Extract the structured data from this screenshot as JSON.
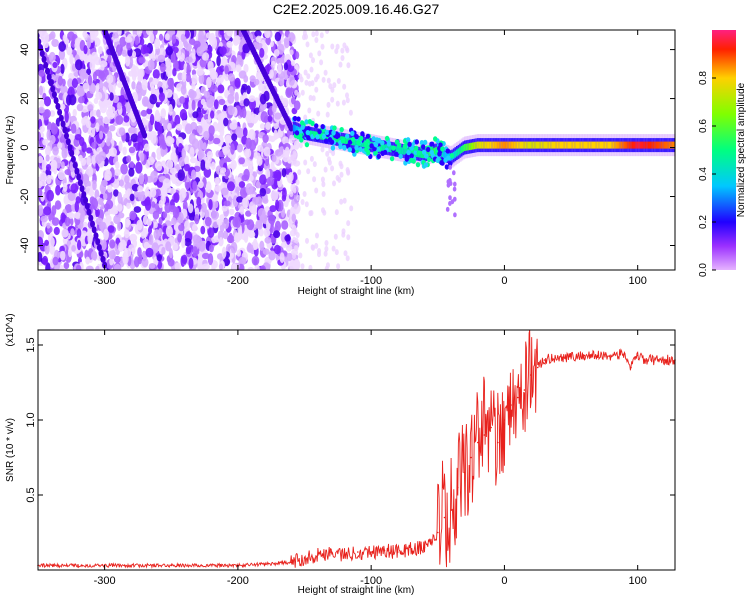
{
  "title": "C2E2.2025.009.16.46.G27",
  "chart_data": [
    {
      "type": "heatmap",
      "xlabel": "Height of straight line (km)",
      "ylabel": "Frequency (Hz)",
      "xlim": [
        -350,
        128
      ],
      "ylim": [
        -50,
        48
      ],
      "x_ticks": [
        -300,
        -200,
        -100,
        0,
        100
      ],
      "y_ticks": [
        -40,
        -20,
        0,
        20,
        40
      ],
      "colorbar": {
        "label": "Normalized spectral amplitude",
        "range": [
          0.0,
          1.0
        ],
        "ticks": [
          0.0,
          0.2,
          0.4,
          0.6,
          0.8
        ]
      },
      "noise_region_x": [
        -350,
        -160
      ],
      "signal_trace": {
        "x": [
          -158,
          -150,
          -140,
          -130,
          -120,
          -110,
          -100,
          -90,
          -80,
          -70,
          -60,
          -50,
          -45,
          -40,
          -30,
          -20,
          -10,
          0,
          10,
          20,
          40,
          60,
          80,
          100,
          128
        ],
        "y": [
          8,
          6,
          5,
          4,
          3,
          2,
          1,
          0,
          -1,
          -2,
          -3,
          -1,
          -3,
          -4,
          0,
          1,
          1,
          1,
          1,
          1,
          1,
          1,
          1,
          1,
          1
        ],
        "amplitude": [
          0.3,
          0.45,
          0.5,
          0.5,
          0.5,
          0.45,
          0.45,
          0.45,
          0.45,
          0.45,
          0.5,
          0.55,
          0.35,
          0.35,
          0.55,
          0.75,
          0.8,
          0.85,
          0.8,
          0.75,
          0.8,
          0.8,
          0.8,
          0.95,
          0.85
        ]
      }
    },
    {
      "type": "line",
      "xlabel": "Height of straight line (km)",
      "ylabel": "SNR (10 * v/v)",
      "y_multiplier": "(x10^4)",
      "xlim": [
        -350,
        128
      ],
      "ylim": [
        0,
        1.6
      ],
      "x_ticks": [
        -300,
        -200,
        -100,
        0,
        100
      ],
      "y_ticks": [
        0.5,
        1.0,
        1.5
      ],
      "series": [
        {
          "color": "#e8211c",
          "x": [
            -350,
            -300,
            -250,
            -200,
            -180,
            -160,
            -150,
            -140,
            -130,
            -120,
            -110,
            -100,
            -90,
            -80,
            -70,
            -60,
            -50,
            -45,
            -40,
            -35,
            -30,
            -25,
            -20,
            -15,
            -10,
            -5,
            0,
            5,
            10,
            15,
            20,
            25,
            30,
            40,
            50,
            60,
            70,
            80,
            90,
            95,
            100,
            105,
            110,
            120,
            128
          ],
          "y": [
            0.03,
            0.03,
            0.03,
            0.03,
            0.04,
            0.05,
            0.08,
            0.1,
            0.12,
            0.1,
            0.12,
            0.12,
            0.13,
            0.12,
            0.14,
            0.15,
            0.25,
            0.35,
            0.4,
            0.55,
            0.65,
            0.75,
            0.85,
            0.9,
            0.95,
            0.85,
            1.0,
            1.1,
            1.15,
            1.2,
            1.3,
            1.35,
            1.4,
            1.42,
            1.42,
            1.43,
            1.43,
            1.43,
            1.44,
            1.35,
            1.43,
            1.4,
            1.4,
            1.4,
            1.4
          ]
        }
      ]
    }
  ]
}
